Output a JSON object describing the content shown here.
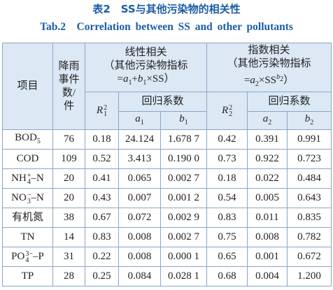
{
  "caption": {
    "cn": "表2　SS与其他污染物的相关性",
    "en": "Tab.2　Correlation between SS and other pollutants"
  },
  "header": {
    "item": "项目",
    "events": "降雨事件数/件",
    "linear": {
      "title": "线性相关",
      "formula": [
        {
          "text": "（其他污染物指标="
        },
        {
          "text": "a",
          "italic": true,
          "sub": "1"
        },
        {
          "text": "+"
        },
        {
          "text": "b",
          "italic": true,
          "sub": "1"
        },
        {
          "text": "×SS）"
        }
      ],
      "r2": [
        {
          "text": "R",
          "italic": true,
          "sub": "1",
          "sup": "2"
        }
      ],
      "coef": "回归系数",
      "a": [
        {
          "text": "a",
          "italic": true,
          "sub": "1"
        }
      ],
      "b": [
        {
          "text": "b",
          "italic": true,
          "sub": "1"
        }
      ]
    },
    "exponential": {
      "title": "指数相关",
      "formula": [
        {
          "text": "（其他污染物指标="
        },
        {
          "text": "a",
          "italic": true,
          "sub": "2"
        },
        {
          "text": "×SS"
        },
        {
          "text": "b",
          "italic": true,
          "sub": "2",
          "raise": true
        },
        {
          "text": "）"
        }
      ],
      "r2": [
        {
          "text": "R",
          "italic": true,
          "sub": "2",
          "sup": "2"
        }
      ],
      "coef": "回归系数",
      "a": [
        {
          "text": "a",
          "italic": true,
          "sub": "2"
        }
      ],
      "b": [
        {
          "text": "b",
          "italic": true,
          "sub": "2"
        }
      ]
    }
  },
  "rows": [
    {
      "item": [
        {
          "text": "BOD",
          "sub": "5"
        }
      ],
      "cells": [
        "76",
        "0.18",
        "24.124",
        "1.678 7",
        "0.42",
        "0.391",
        "0.991"
      ]
    },
    {
      "item": [
        {
          "text": "COD"
        }
      ],
      "cells": [
        "109",
        "0.52",
        "3.413",
        "0.190 0",
        "0.73",
        "0.922",
        "0.723"
      ]
    },
    {
      "item": [
        {
          "text": "NH",
          "sub": "4",
          "sup": "+"
        },
        {
          "text": "–N"
        }
      ],
      "cells": [
        "20",
        "0.41",
        "0.065",
        "0.002 7",
        "0.18",
        "0.022",
        "0.484"
      ]
    },
    {
      "item": [
        {
          "text": "NO",
          "sub": "3",
          "sup": "−"
        },
        {
          "text": "–N"
        }
      ],
      "cells": [
        "20",
        "0.43",
        "0.007",
        "0.001 2",
        "0.54",
        "0.005",
        "0.643"
      ]
    },
    {
      "item": [
        {
          "text": "有机氮"
        }
      ],
      "cells": [
        "38",
        "0.67",
        "0.072",
        "0.002 9",
        "0.83",
        "0.011",
        "0.835"
      ]
    },
    {
      "item": [
        {
          "text": "TN"
        }
      ],
      "cells": [
        "14",
        "0.83",
        "0.008",
        "0.002 7",
        "0.75",
        "0.008",
        "0.782"
      ]
    },
    {
      "item": [
        {
          "text": "PO",
          "sub": "4",
          "sup": "3−"
        },
        {
          "text": "–P"
        }
      ],
      "cells": [
        "31",
        "0.22",
        "0.008",
        "0.000 1",
        "0.65",
        "0.001",
        "0.672"
      ]
    },
    {
      "item": [
        {
          "text": "TP"
        }
      ],
      "cells": [
        "28",
        "0.25",
        "0.084",
        "0.028 1",
        "0.68",
        "0.004",
        "1.200"
      ]
    }
  ]
}
